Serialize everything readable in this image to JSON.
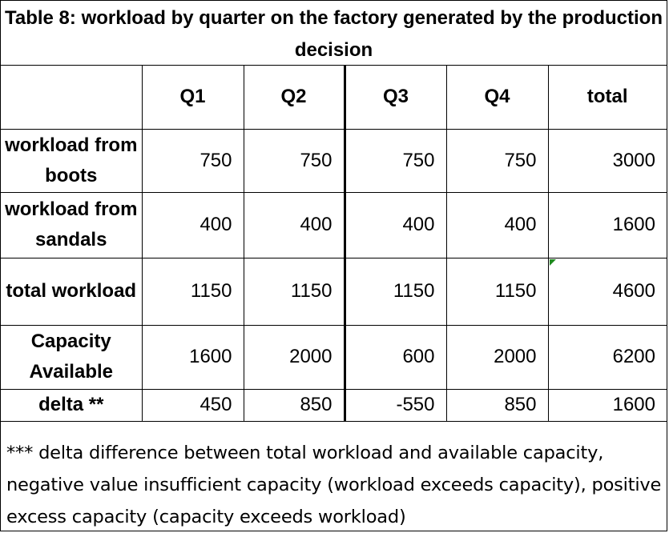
{
  "title": "Table 8: workload by quarter on the factory generated by the production decision",
  "columns": [
    "",
    "Q1",
    "Q2",
    "Q3",
    "Q4",
    "total"
  ],
  "rows": [
    {
      "label": "workload from boots",
      "values": [
        "750",
        "750",
        "750",
        "750",
        "3000"
      ]
    },
    {
      "label": "workload from sandals",
      "values": [
        "400",
        "400",
        "400",
        "400",
        "1600"
      ]
    },
    {
      "label": "total workload",
      "values": [
        "1150",
        "1150",
        "1150",
        "1150",
        "4600"
      ]
    },
    {
      "label": "Capacity Available",
      "values": [
        "1600",
        "2000",
        "600",
        "2000",
        "6200"
      ]
    },
    {
      "label": "delta **",
      "values": [
        "450",
        "850",
        "-550",
        "850",
        "1600"
      ]
    }
  ],
  "note": "*** delta difference between total workload and available capacity, negative value insufficient capacity (workload exceeds capacity), positive excess capacity (capacity exceeds workload)",
  "colors": {
    "border": "#000000",
    "corner_marker": "#1f8a1f"
  }
}
